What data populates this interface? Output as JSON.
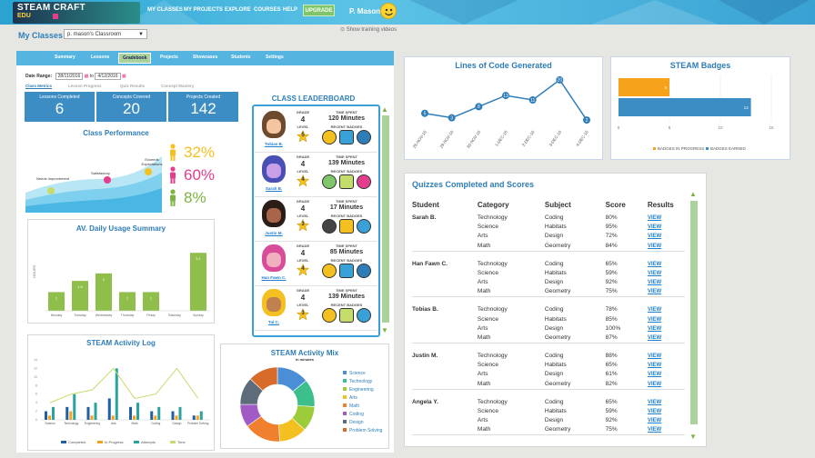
{
  "topnav": {
    "logo_line1": "STEAM CRAFT",
    "logo_line2": "EDU",
    "items": [
      "MY CLASSES",
      "MY PROJECTS",
      "EXPLORE",
      "COURSES",
      "HELP"
    ],
    "upgrade": "UPGRADE",
    "user": "P. Mason"
  },
  "header": {
    "title": "My Classes",
    "classroom": "p. mason's Classroom",
    "training": "Show training videos"
  },
  "tabs": [
    "Summary",
    "Lessons",
    "Gradebook",
    "Projects",
    "Showcases",
    "Students",
    "Settings"
  ],
  "active_tab": "Gradebook",
  "date_range": {
    "label": "Date Range:",
    "from": "28/11/2016",
    "to_label": "to",
    "to": "4/12/2016"
  },
  "subtabs": [
    "Class Metrics",
    "Lesson Progress",
    "Quiz Results",
    "Concept Mastery"
  ],
  "stats": [
    {
      "label": "Lessons Completed",
      "value": "6"
    },
    {
      "label": "Concepts Covered",
      "value": "20"
    },
    {
      "label": "Projects Created",
      "value": "142"
    }
  ],
  "performance": {
    "title": "Class Performance",
    "labels": [
      "Needs Improvement",
      "Satisfactory",
      "Exceeds Expectations"
    ],
    "values": [
      "32%",
      "60%",
      "8%"
    ],
    "colors": [
      "#f4c020",
      "#e43d8c",
      "#7cb342"
    ]
  },
  "daily_usage": {
    "title": "AV. Daily Usage Summary",
    "ylabel": "HOURS",
    "days": [
      "Monday",
      "Tuesday",
      "Wednesday",
      "Thursday",
      "Friday",
      "Saturday",
      "Sunday"
    ],
    "values": [
      1,
      1.6,
      2,
      1,
      1,
      0,
      3.1
    ],
    "labels": [
      "1",
      "1.6",
      "2",
      "1",
      "1",
      "",
      "3.1"
    ]
  },
  "leaderboard": {
    "title": "CLASS LEADERBOARD",
    "grade_label": "GRADE",
    "level_label": "LEVEL",
    "time_label": "TIME SPENT",
    "badges_label": "RECENT BADGES",
    "students": [
      {
        "name": "Tobias B.",
        "grade": "4",
        "level": "5",
        "time": "120 Minutes"
      },
      {
        "name": "Sarah B.",
        "grade": "4",
        "level": "4",
        "time": "139 Minutes"
      },
      {
        "name": "Justin M.",
        "grade": "4",
        "level": "3",
        "time": "17 Minutes"
      },
      {
        "name": "Han Fawn C.",
        "grade": "4",
        "level": "4",
        "time": "85 Minutes"
      },
      {
        "name": "Tal C.",
        "grade": "4",
        "level": "3",
        "time": "139 Minutes"
      }
    ]
  },
  "activity_log": {
    "title": "STEAM Activity Log",
    "categories": [
      "Science",
      "Technology",
      "Engineering",
      "Arts",
      "Math",
      "Coding",
      "Design",
      "Problem Solving"
    ],
    "legend": [
      "Completed",
      "In Progress",
      "Attempts",
      "Time"
    ],
    "colors": [
      "#1f5fa8",
      "#f7a21b",
      "#2aa3a0",
      "#c4dc6a"
    ],
    "completed": [
      2,
      3,
      3,
      5,
      3,
      2,
      2,
      1
    ],
    "in_progress": [
      1,
      2,
      1,
      1,
      1,
      1,
      1,
      1
    ],
    "attempts": [
      3,
      6,
      4,
      12,
      4,
      3,
      3,
      2
    ],
    "time": [
      4,
      6,
      7,
      12,
      5,
      6,
      12,
      5
    ],
    "ylim": [
      0,
      14
    ]
  },
  "activity_mix": {
    "title": "STEAM Activity Mix",
    "subtitle": "in minutes",
    "labels": [
      "Science",
      "Technology",
      "Engineering",
      "Arts",
      "Math",
      "Coding",
      "Design",
      "Problem Solving"
    ],
    "colors": [
      "#4a8fd6",
      "#3dbf8b",
      "#9ccc3a",
      "#f4c020",
      "#f0802e",
      "#a05bc4",
      "#5d6b7a",
      "#d96b2a"
    ],
    "values": [
      14,
      12,
      11,
      12,
      16,
      10,
      12,
      13
    ]
  },
  "lines_of_code": {
    "title": "Lines of Code Generated",
    "dates": [
      "28-NOV-16",
      "29-NOV-16",
      "30-NOV-16",
      "1-DEC-16",
      "2-DEC-16",
      "3-DEC-16",
      "4-DEC-16"
    ],
    "values": [
      5,
      3,
      8,
      13,
      11,
      20,
      2
    ],
    "ylim": [
      0,
      22
    ]
  },
  "badges": {
    "title": "STEAM Badges",
    "legend": [
      "BADGES IN PROGRESS",
      "BADGES EARNED"
    ],
    "colors": [
      "#f7a21b",
      "#3d8dc5"
    ],
    "in_progress": 5,
    "earned": 13,
    "ticks": [
      "0",
      "5",
      "10",
      "15"
    ],
    "xlim": [
      0,
      15
    ]
  },
  "quizzes": {
    "title": "Quizzes Completed and Scores",
    "headers": [
      "Student",
      "Category",
      "Subject",
      "Score",
      "Results"
    ],
    "view_label": "VIEW",
    "students": [
      {
        "name": "Sarah B.",
        "rows": [
          [
            "Technology",
            "Coding",
            "80%"
          ],
          [
            "Science",
            "Habitats",
            "95%"
          ],
          [
            "Arts",
            "Design",
            "72%"
          ],
          [
            "Math",
            "Geometry",
            "84%"
          ]
        ]
      },
      {
        "name": "Han Fawn C.",
        "rows": [
          [
            "Technology",
            "Coding",
            "65%"
          ],
          [
            "Science",
            "Habitats",
            "59%"
          ],
          [
            "Arts",
            "Design",
            "92%"
          ],
          [
            "Math",
            "Geometry",
            "75%"
          ]
        ]
      },
      {
        "name": "Tobias B.",
        "rows": [
          [
            "Technology",
            "Coding",
            "78%"
          ],
          [
            "Science",
            "Habitats",
            "85%"
          ],
          [
            "Arts",
            "Design",
            "100%"
          ],
          [
            "Math",
            "Geometry",
            "87%"
          ]
        ]
      },
      {
        "name": "Justin M.",
        "rows": [
          [
            "Technology",
            "Coding",
            "88%"
          ],
          [
            "Science",
            "Habitats",
            "65%"
          ],
          [
            "Arts",
            "Design",
            "61%"
          ],
          [
            "Math",
            "Geometry",
            "82%"
          ]
        ]
      },
      {
        "name": "Angela Y.",
        "rows": [
          [
            "Technology",
            "Coding",
            "65%"
          ],
          [
            "Science",
            "Habitats",
            "59%"
          ],
          [
            "Arts",
            "Design",
            "92%"
          ],
          [
            "Math",
            "Geometry",
            "75%"
          ]
        ]
      }
    ]
  }
}
